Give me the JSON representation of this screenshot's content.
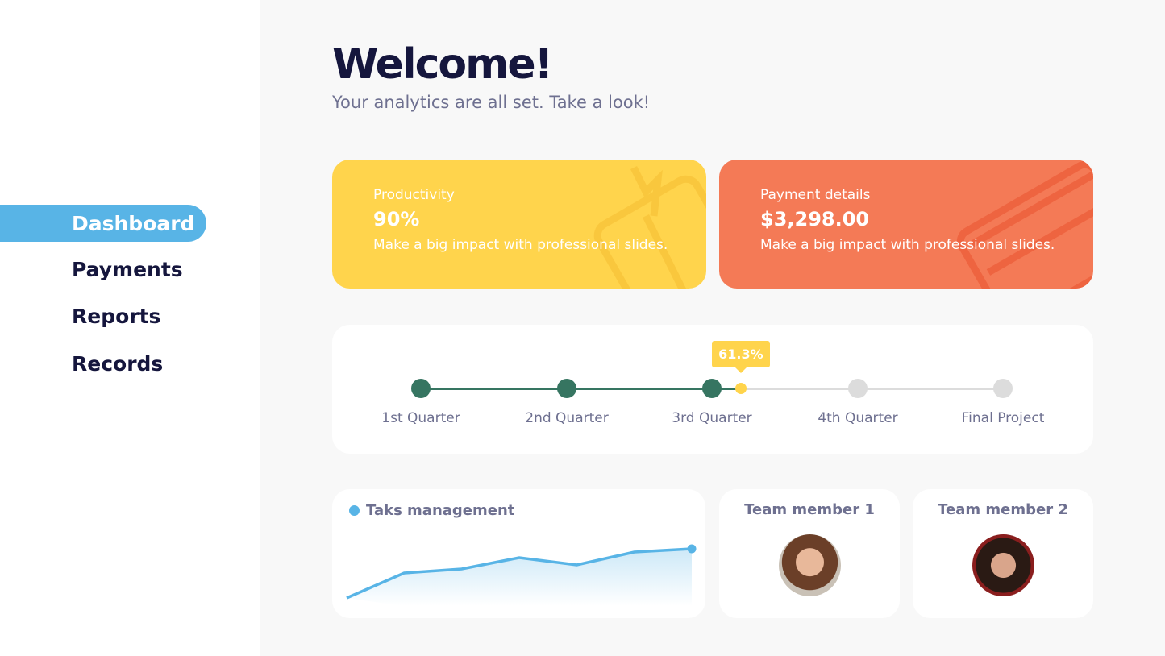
{
  "sidebar": {
    "items": [
      {
        "label": "Dashboard",
        "active": true
      },
      {
        "label": "Payments"
      },
      {
        "label": "Reports"
      },
      {
        "label": "Records"
      }
    ]
  },
  "header": {
    "title": "Welcome!",
    "subtitle": "Your analytics are all set. Take a look!"
  },
  "cards": [
    {
      "label": "Productivity",
      "value": "90%",
      "description": "Make a big impact with professional slides.",
      "color": "#ffd44c",
      "icon": "book-icon"
    },
    {
      "label": "Payment details",
      "value": "$3,298.00",
      "description": "Make a big impact with professional slides.",
      "color": "#f47a56",
      "icon": "credit-card-icon"
    }
  ],
  "timeline": {
    "progress_label": "61.3%",
    "progress_percent": 61.3,
    "milestones": [
      "1st Quarter",
      "2nd Quarter",
      "3rd Quarter",
      "4th Quarter",
      "Final Project"
    ],
    "completed_color": "#367561",
    "pending_color": "#dcdcdc",
    "marker_color": "#ffd44c"
  },
  "tasks": {
    "title": "Taks management",
    "color": "#58b4e6"
  },
  "chart_data": {
    "type": "area",
    "values": [
      0,
      31,
      36,
      50,
      41,
      57,
      61
    ],
    "xlabel": "",
    "ylabel": ""
  },
  "team": [
    {
      "label": "Team member 1"
    },
    {
      "label": "Team member 2"
    }
  ]
}
